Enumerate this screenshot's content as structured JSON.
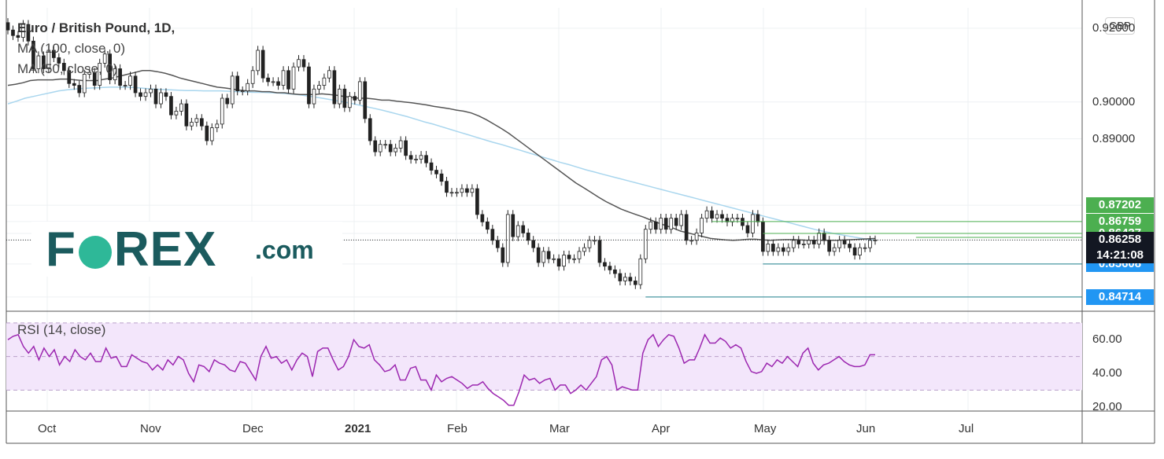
{
  "chart_data": [
    {
      "type": "candlestick",
      "title": "Euro / British Pound, 1D,",
      "currency": "GBP",
      "ylim": [
        0.8435,
        0.9255
      ],
      "y_ticks": [
        {
          "value": 0.92,
          "label": "0.92000"
        },
        {
          "value": 0.9,
          "label": "0.90000"
        },
        {
          "value": 0.89,
          "label": "0.89000"
        }
      ],
      "x_labels": [
        {
          "label": "Oct",
          "bold": false
        },
        {
          "label": "Nov",
          "bold": false
        },
        {
          "label": "Dec",
          "bold": false
        },
        {
          "label": "2021",
          "bold": true
        },
        {
          "label": "Feb",
          "bold": false
        },
        {
          "label": "Mar",
          "bold": false
        },
        {
          "label": "Apr",
          "bold": false
        },
        {
          "label": "May",
          "bold": false
        },
        {
          "label": "Jun",
          "bold": false
        },
        {
          "label": "Jul",
          "bold": false
        }
      ],
      "indicators": [
        {
          "label": "MA (100, close, 0)",
          "color": "#a9d6ee"
        },
        {
          "label": "MA (50, close, 0)",
          "color": "#555555"
        }
      ],
      "price_tags": [
        {
          "value": 0.87202,
          "label": "0.87202",
          "color": "green"
        },
        {
          "value": 0.86759,
          "label": "0.86759",
          "color": "green"
        },
        {
          "value": 0.86437,
          "label": "0.86437",
          "color": "green"
        },
        {
          "value": 0.86258,
          "label": "0.86258",
          "color": "black"
        },
        {
          "value": 0.85608,
          "label": "0.85608",
          "color": "blue"
        },
        {
          "value": 0.84714,
          "label": "0.84714",
          "color": "blue"
        }
      ],
      "countdown": "14:21:08",
      "last_price": 0.86258,
      "closes": [
        0.9195,
        0.918,
        0.9175,
        0.921,
        0.9165,
        0.909,
        0.9125,
        0.909,
        0.914,
        0.912,
        0.9105,
        0.9085,
        0.905,
        0.9045,
        0.9025,
        0.9075,
        0.908,
        0.9045,
        0.9105,
        0.913,
        0.906,
        0.909,
        0.9045,
        0.9045,
        0.907,
        0.9025,
        0.9015,
        0.9025,
        0.9035,
        0.8995,
        0.9025,
        0.9015,
        0.8965,
        0.8975,
        0.8995,
        0.8935,
        0.8945,
        0.8955,
        0.8935,
        0.8895,
        0.893,
        0.894,
        0.901,
        0.8995,
        0.907,
        0.903,
        0.903,
        0.905,
        0.9085,
        0.914,
        0.9065,
        0.9055,
        0.9055,
        0.9045,
        0.9085,
        0.9035,
        0.9095,
        0.9115,
        0.9095,
        0.8995,
        0.9035,
        0.9045,
        0.9065,
        0.9085,
        0.8995,
        0.9035,
        0.8985,
        0.9015,
        0.9005,
        0.9055,
        0.8955,
        0.8895,
        0.8865,
        0.8885,
        0.8885,
        0.8865,
        0.8875,
        0.8895,
        0.8855,
        0.8845,
        0.8845,
        0.8855,
        0.8835,
        0.8815,
        0.8805,
        0.8785,
        0.8755,
        0.8755,
        0.8755,
        0.8765,
        0.8755,
        0.8765,
        0.8695,
        0.8675,
        0.8655,
        0.8625,
        0.8605,
        0.8565,
        0.8695,
        0.8635,
        0.8665,
        0.8645,
        0.8625,
        0.8605,
        0.8565,
        0.8595,
        0.8575,
        0.8575,
        0.8555,
        0.8585,
        0.8575,
        0.8575,
        0.8595,
        0.8605,
        0.8625,
        0.8625,
        0.8565,
        0.8555,
        0.8545,
        0.8535,
        0.8515,
        0.8525,
        0.8515,
        0.8505,
        0.8575,
        0.8655,
        0.8675,
        0.8655,
        0.8685,
        0.8655,
        0.8685,
        0.8665,
        0.8695,
        0.8625,
        0.8625,
        0.8645,
        0.8685,
        0.8705,
        0.8685,
        0.8695,
        0.8685,
        0.8675,
        0.8685,
        0.8685,
        0.8665,
        0.8645,
        0.8695,
        0.8675,
        0.8595,
        0.8615,
        0.8595,
        0.8605,
        0.8595,
        0.8605,
        0.8625,
        0.8615,
        0.8615,
        0.8625,
        0.8615,
        0.8645,
        0.8625,
        0.8595,
        0.8605,
        0.8625,
        0.8615,
        0.8605,
        0.8585,
        0.8605,
        0.8605,
        0.8625,
        0.8626
      ],
      "ma50": [
        0.9045,
        0.9048,
        0.9052,
        0.9058,
        0.906,
        0.906,
        0.906,
        0.9062,
        0.9062,
        0.906,
        0.9058,
        0.9058,
        0.9058,
        0.9062,
        0.9065,
        0.907,
        0.9075,
        0.908,
        0.9085,
        0.9085,
        0.9082,
        0.9078,
        0.9072,
        0.9065,
        0.906,
        0.9055,
        0.905,
        0.9045,
        0.904,
        0.9038,
        0.9035,
        0.9032,
        0.903,
        0.903,
        0.9028,
        0.9028,
        0.9025,
        0.9025,
        0.9022,
        0.902,
        0.902,
        0.902,
        0.9022,
        0.902,
        0.9018,
        0.9015,
        0.9012,
        0.901,
        0.901,
        0.9008,
        0.9005,
        0.9005,
        0.9002,
        0.9,
        0.8998,
        0.8995,
        0.8992,
        0.8988,
        0.8985,
        0.8982,
        0.8978,
        0.8975,
        0.897,
        0.8962,
        0.8952,
        0.894,
        0.8928,
        0.8915,
        0.89,
        0.8885,
        0.887,
        0.8855,
        0.884,
        0.8825,
        0.881,
        0.8795,
        0.878,
        0.8768,
        0.8755,
        0.8742,
        0.873,
        0.872,
        0.871,
        0.8702,
        0.8695,
        0.8688,
        0.868,
        0.8672,
        0.8665,
        0.8658,
        0.865,
        0.8645,
        0.864,
        0.8635,
        0.863,
        0.8628,
        0.8626,
        0.8625,
        0.8626,
        0.8628,
        0.8628,
        0.8626,
        0.8625,
        0.8626,
        0.8627,
        0.8627,
        0.8626,
        0.8625,
        0.8625,
        0.8625,
        0.8625,
        0.8625,
        0.8626,
        0.8627,
        0.8628,
        0.8629,
        0.863
      ],
      "ma100": [
        0.8995,
        0.9002,
        0.901,
        0.9015,
        0.902,
        0.9025,
        0.903,
        0.9033,
        0.9035,
        0.9037,
        0.9038,
        0.9039,
        0.904,
        0.904,
        0.904,
        0.9039,
        0.9037,
        0.9035,
        0.9034,
        0.9033,
        0.9032,
        0.9031,
        0.9031,
        0.903,
        0.903,
        0.903,
        0.9029,
        0.9028,
        0.9027,
        0.9026,
        0.9026,
        0.9025,
        0.9024,
        0.9022,
        0.902,
        0.9017,
        0.9014,
        0.901,
        0.9006,
        0.9002,
        0.8998,
        0.8993,
        0.8988,
        0.8983,
        0.8978,
        0.8972,
        0.8966,
        0.896,
        0.8953,
        0.8946,
        0.894,
        0.8933,
        0.8926,
        0.8919,
        0.8912,
        0.8905,
        0.8898,
        0.8891,
        0.8885,
        0.8878,
        0.8871,
        0.8864,
        0.8857,
        0.885,
        0.8843,
        0.8836,
        0.883,
        0.8823,
        0.8816,
        0.881,
        0.8804,
        0.8798,
        0.8792,
        0.8786,
        0.878,
        0.8774,
        0.8768,
        0.8762,
        0.8756,
        0.875,
        0.8744,
        0.8738,
        0.8732,
        0.8726,
        0.872,
        0.8714,
        0.8708,
        0.8702,
        0.8696,
        0.869,
        0.8684,
        0.8678,
        0.8672,
        0.8666,
        0.866,
        0.8654,
        0.8649,
        0.8644,
        0.864,
        0.8636,
        0.8632,
        0.8628,
        0.8625
      ],
      "ref_lines": [
        {
          "value": 0.86759,
          "from_bar": 138,
          "color": "green"
        },
        {
          "value": 0.86437,
          "from_bar": 148,
          "color": "green"
        },
        {
          "value": 0.8633,
          "from_bar": 178,
          "color": "green"
        },
        {
          "value": 0.85608,
          "from_bar": 148,
          "color": "blue"
        },
        {
          "value": 0.84714,
          "from_bar": 125,
          "color": "blue"
        }
      ]
    },
    {
      "type": "line",
      "title": "RSI (14, close)",
      "ylim": [
        18,
        76
      ],
      "band": [
        30,
        70
      ],
      "mid": 50,
      "y_ticks": [
        {
          "value": 60,
          "label": "60.00"
        },
        {
          "value": 40,
          "label": "40.00"
        },
        {
          "value": 20,
          "label": "20.00"
        }
      ],
      "series": [
        {
          "name": "RSI",
          "color": "#9c27b0"
        }
      ],
      "values": [
        60,
        62,
        63,
        56,
        52,
        56,
        48,
        55,
        50,
        54,
        45,
        50,
        47,
        54,
        50,
        48,
        52,
        47,
        47,
        55,
        49,
        50,
        44,
        44,
        51,
        49,
        47,
        46,
        42,
        45,
        42,
        48,
        45,
        50,
        48,
        40,
        35,
        45,
        44,
        41,
        48,
        46,
        45,
        42,
        41,
        47,
        46,
        41,
        36,
        50,
        56,
        49,
        50,
        46,
        48,
        42,
        48,
        52,
        50,
        38,
        53,
        55,
        55,
        48,
        42,
        44,
        50,
        60,
        56,
        55,
        57,
        48,
        45,
        41,
        42,
        45,
        36,
        36,
        43,
        44,
        36,
        36,
        30,
        39,
        35,
        37,
        38,
        36,
        34,
        31,
        33,
        33,
        35,
        31,
        28,
        26,
        24,
        21,
        21,
        29,
        39,
        36,
        37,
        34,
        36,
        37,
        30,
        33,
        33,
        28,
        30,
        33,
        30,
        34,
        38,
        48,
        50,
        45,
        30,
        32,
        31,
        30,
        30,
        52,
        60,
        63,
        56,
        60,
        63,
        62,
        55,
        46,
        48,
        48,
        55,
        63,
        58,
        58,
        61,
        59,
        55,
        57,
        55,
        47,
        41,
        40,
        41,
        46,
        44,
        48,
        46,
        50,
        47,
        44,
        52,
        55,
        46,
        42,
        45,
        46,
        48,
        50,
        47,
        45,
        44,
        44,
        45,
        51,
        51
      ]
    }
  ]
}
